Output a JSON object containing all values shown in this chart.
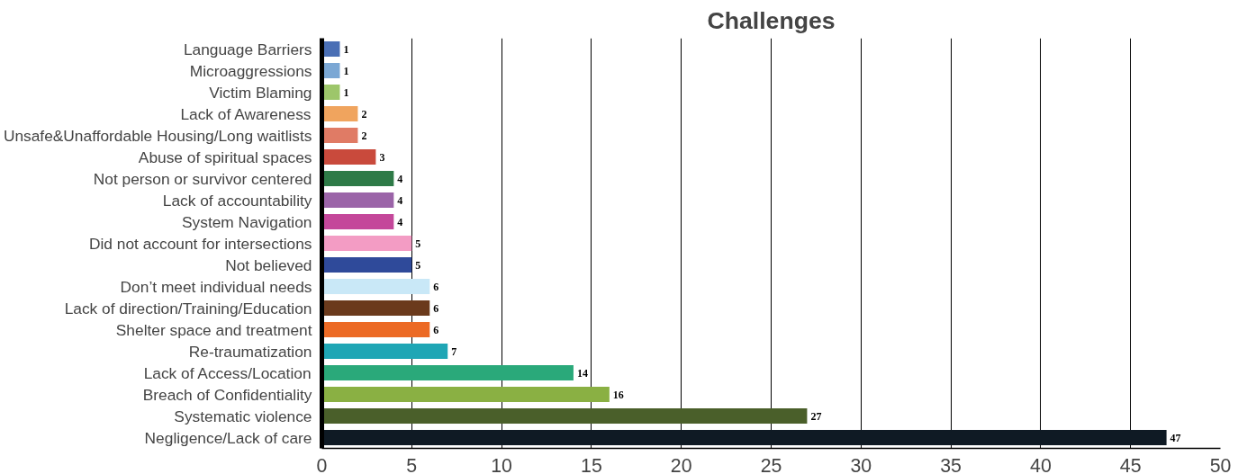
{
  "chart_data": {
    "type": "bar",
    "title": "Challenges",
    "orientation": "horizontal",
    "categories": [
      "Language Barriers",
      "Microaggressions",
      "Victim Blaming",
      "Lack of Awareness",
      "Unsafe&Unaffordable Housing/Long waitlists",
      "Abuse of spiritual spaces",
      "Not person or survivor centered",
      "Lack of accountability",
      "System Navigation",
      "Did not account for intersections",
      "Not believed",
      "Don’t meet individual needs",
      "Lack of direction/Training/Education",
      "Shelter space and treatment",
      "Re-traumatization",
      "Lack of Access/Location",
      "Breach of Confidentiality",
      "Systematic violence",
      "Negligence/Lack of care"
    ],
    "values": [
      1,
      1,
      1,
      2,
      2,
      3,
      4,
      4,
      4,
      5,
      5,
      6,
      6,
      6,
      7,
      14,
      16,
      27,
      47
    ],
    "colors": [
      "#4a6fb5",
      "#7ba7d4",
      "#9dc66a",
      "#f0a45e",
      "#e07b65",
      "#c94a3c",
      "#2e7a47",
      "#9b64a8",
      "#c4479a",
      "#f39cc4",
      "#2f4a9a",
      "#c9e8f7",
      "#6b3a1c",
      "#ec6a25",
      "#1fa6b5",
      "#2aa97a",
      "#8ab043",
      "#4a5f2a",
      "#0f1a24"
    ],
    "xlim": [
      0,
      50
    ],
    "xticks": [
      0,
      5,
      10,
      15,
      20,
      25,
      30,
      35,
      40,
      45,
      50
    ],
    "grid": "x",
    "data_labels": true
  }
}
